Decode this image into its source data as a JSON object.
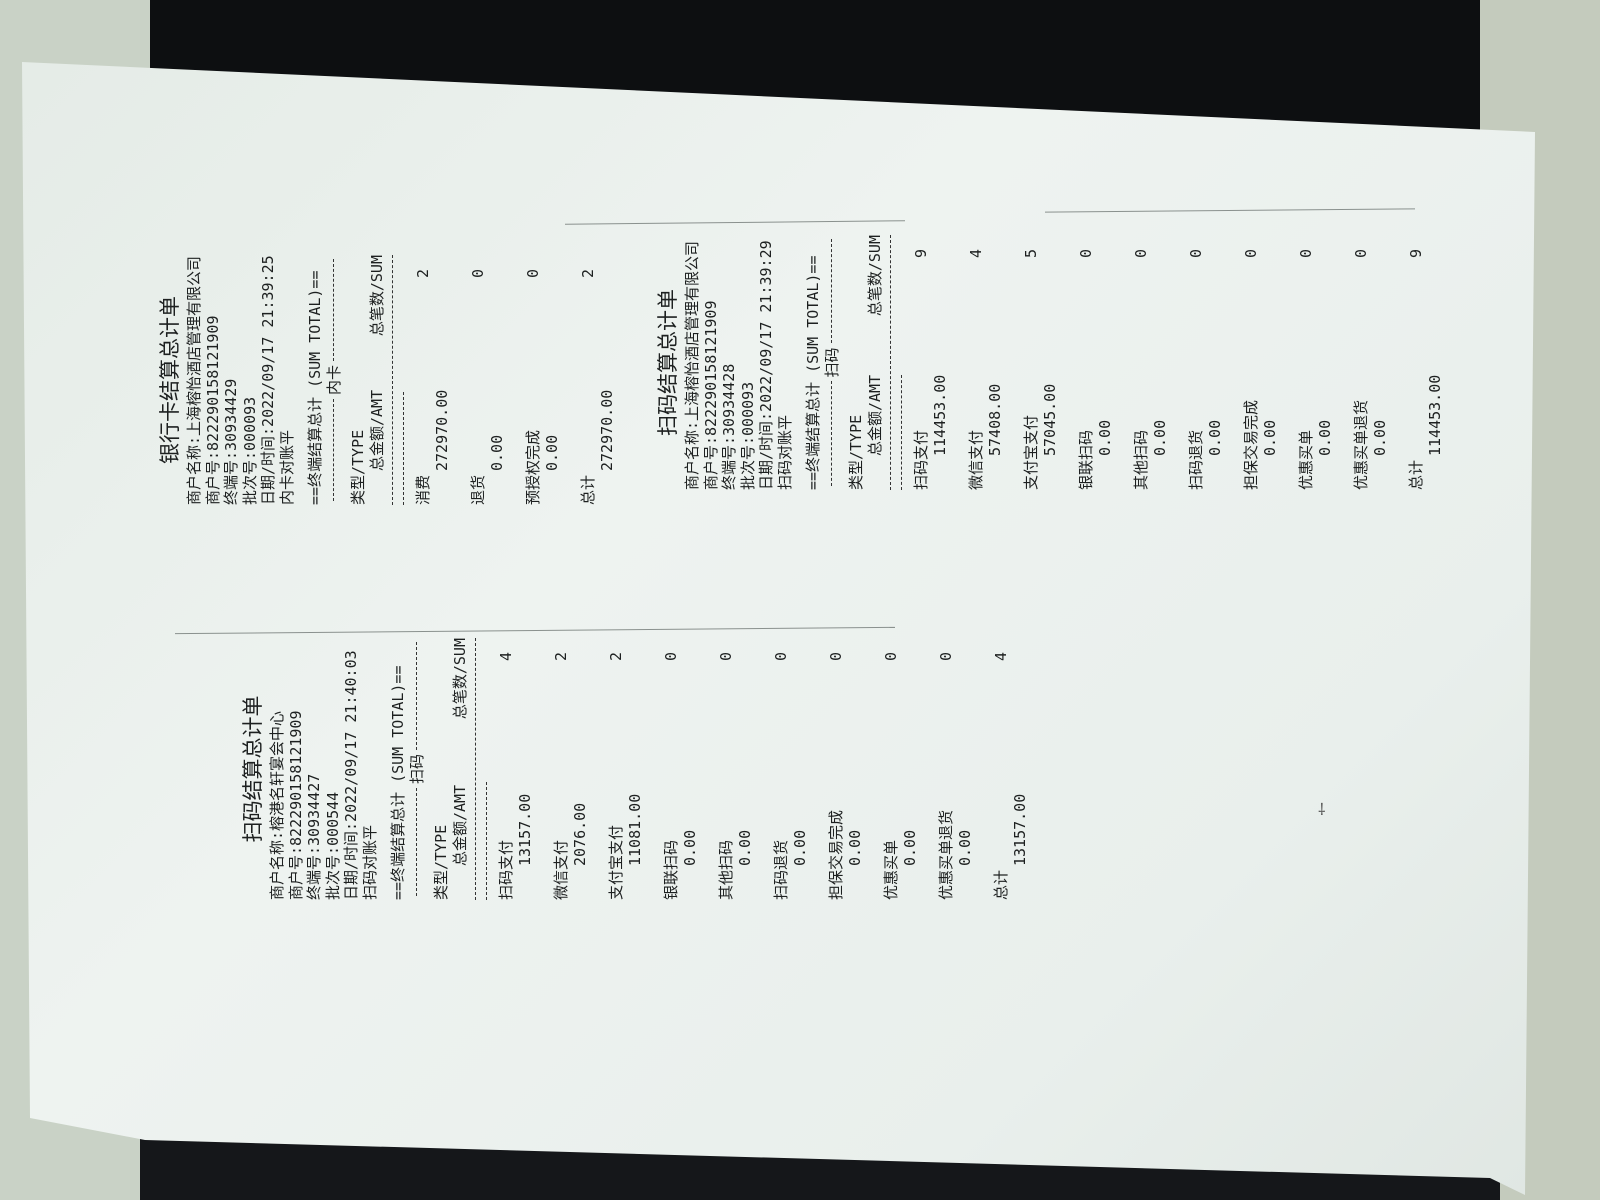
{
  "receipts": [
    {
      "title": "银行卡结算总计单",
      "merchant_name": "商户名称:上海榕怡酒店管理有限公司",
      "merchant_no": "商户号:822290158121909",
      "terminal_no": "终端号:30934429",
      "batch_no": "批次号:000093",
      "datetime": "日期/时间:2022/09/17 21:39:25",
      "reconcile": "内卡对账平",
      "sum_title": "终端结算总计 (SUM TOTAL)",
      "section": "内卡",
      "col_type": "类型/TYPE",
      "col_amt": "总金额/AMT",
      "col_sum": "总笔数/SUM",
      "rows": [
        {
          "label": "消费",
          "amount": "272970.00",
          "count": "2"
        },
        {
          "label": "退货",
          "amount": "0.00",
          "count": "0"
        },
        {
          "label": "预授权完成",
          "amount": "0.00",
          "count": "0"
        },
        {
          "label": "总计",
          "amount": "272970.00",
          "count": "2"
        }
      ]
    },
    {
      "title": "扫码结算总计单",
      "merchant_name": "商户名称:上海榕怡酒店管理有限公司",
      "merchant_no": "商户号:822290158121909",
      "terminal_no": "终端号:30934428",
      "batch_no": "批次号:000093",
      "datetime": "日期/时间:2022/09/17 21:39:29",
      "reconcile": "扫码对账平",
      "sum_title": "终端结算总计 (SUM TOTAL)",
      "section": "扫码",
      "col_type": "类型/TYPE",
      "col_amt": "总金额/AMT",
      "col_sum": "总笔数/SUM",
      "rows": [
        {
          "label": "扫码支付",
          "amount": "114453.00",
          "count": "9"
        },
        {
          "label": "微信支付",
          "amount": "57408.00",
          "count": "4"
        },
        {
          "label": "支付宝支付",
          "amount": "57045.00",
          "count": "5"
        },
        {
          "label": "银联扫码",
          "amount": "0.00",
          "count": "0"
        },
        {
          "label": "其他扫码",
          "amount": "0.00",
          "count": "0"
        },
        {
          "label": "扫码退货",
          "amount": "0.00",
          "count": "0"
        },
        {
          "label": "担保交易完成",
          "amount": "0.00",
          "count": "0"
        },
        {
          "label": "优惠买单",
          "amount": "0.00",
          "count": "0"
        },
        {
          "label": "优惠买单退货",
          "amount": "0.00",
          "count": "0"
        },
        {
          "label": "总计",
          "amount": "114453.00",
          "count": "9"
        }
      ]
    },
    {
      "title": "扫码结算总计单",
      "merchant_name": "商户名称:榕港名轩宴会中心",
      "merchant_no": "商户号:822290158121909",
      "terminal_no": "终端号:30934427",
      "batch_no": "批次号:000544",
      "datetime": "日期/时间:2022/09/17 21:40:03",
      "reconcile": "扫码对账平",
      "sum_title": "终端结算总计 (SUM TOTAL)",
      "section": "扫码",
      "col_type": "类型/TYPE",
      "col_amt": "总金额/AMT",
      "col_sum": "总笔数/SUM",
      "rows": [
        {
          "label": "扫码支付",
          "amount": "13157.00",
          "count": "4"
        },
        {
          "label": "微信支付",
          "amount": "2076.00",
          "count": "2"
        },
        {
          "label": "支付宝支付",
          "amount": "11081.00",
          "count": "2"
        },
        {
          "label": "银联扫码",
          "amount": "0.00",
          "count": "0"
        },
        {
          "label": "其他扫码",
          "amount": "0.00",
          "count": "0"
        },
        {
          "label": "扫码退货",
          "amount": "0.00",
          "count": "0"
        },
        {
          "label": "担保交易完成",
          "amount": "0.00",
          "count": "0"
        },
        {
          "label": "优惠买单",
          "amount": "0.00",
          "count": "0"
        },
        {
          "label": "优惠买单退货",
          "amount": "0.00",
          "count": "0"
        },
        {
          "label": "总计",
          "amount": "13157.00",
          "count": "4"
        }
      ]
    }
  ]
}
